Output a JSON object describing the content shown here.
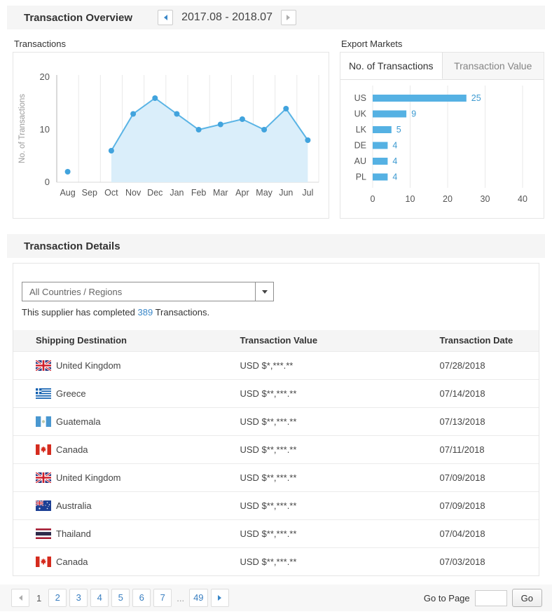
{
  "overview": {
    "title": "Transaction Overview",
    "date_range": "2017.08 - 2018.07",
    "transactions_label": "Transactions",
    "export_markets_label": "Export Markets",
    "tabs": [
      "No. of Transactions",
      "Transaction Value"
    ]
  },
  "chart_data": [
    {
      "type": "line",
      "title": "Transactions",
      "x": [
        "Aug",
        "Sep",
        "Oct",
        "Nov",
        "Dec",
        "Jan",
        "Feb",
        "Mar",
        "Apr",
        "May",
        "Jun",
        "Jul"
      ],
      "values": [
        2,
        null,
        6,
        13,
        16,
        13,
        10,
        11,
        12,
        10,
        14,
        8
      ],
      "ylabel": "No. of Transactions",
      "yticks": [
        0,
        10,
        20
      ],
      "ylim": [
        0,
        20
      ],
      "area": true,
      "grid": "vertical",
      "legend": "none",
      "colors": {
        "line": "#5ab4e5",
        "fill": "#daeefa",
        "point": "#41a3dd"
      }
    },
    {
      "type": "bar",
      "orientation": "horizontal",
      "title": "Export Markets - No. of Transactions",
      "categories": [
        "US",
        "UK",
        "LK",
        "DE",
        "AU",
        "PL"
      ],
      "values": [
        25,
        9,
        5,
        4,
        4,
        4
      ],
      "xticks": [
        0,
        10,
        20,
        30,
        40
      ],
      "xlim": [
        0,
        40
      ],
      "grid": "vertical",
      "legend": "none",
      "bar_color": "#55b1e3",
      "value_label_color": "#3d9ad1"
    }
  ],
  "details": {
    "title": "Transaction Details",
    "filter_value": "All Countries / Regions",
    "summary_prefix": "This supplier has completed ",
    "summary_count": "389",
    "summary_suffix": " Transactions.",
    "columns": [
      "Shipping Destination",
      "Transaction Value",
      "Transaction Date"
    ],
    "rows": [
      {
        "country": "United Kingdom",
        "flag": "gb",
        "value": "USD $*,***.**",
        "date": "07/28/2018"
      },
      {
        "country": "Greece",
        "flag": "gr",
        "value": "USD $**,***.**",
        "date": "07/14/2018"
      },
      {
        "country": "Guatemala",
        "flag": "gt",
        "value": "USD $**,***.**",
        "date": "07/13/2018"
      },
      {
        "country": "Canada",
        "flag": "ca",
        "value": "USD $**,***.**",
        "date": "07/11/2018"
      },
      {
        "country": "United Kingdom",
        "flag": "gb",
        "value": "USD $**,***.**",
        "date": "07/09/2018"
      },
      {
        "country": "Australia",
        "flag": "au",
        "value": "USD $**,***.**",
        "date": "07/09/2018"
      },
      {
        "country": "Thailand",
        "flag": "th",
        "value": "USD $**,***.**",
        "date": "07/04/2018"
      },
      {
        "country": "Canada",
        "flag": "ca",
        "value": "USD $**,***.**",
        "date": "07/03/2018"
      }
    ]
  },
  "pagination": {
    "current": "1",
    "pages": [
      "2",
      "3",
      "4",
      "5",
      "6",
      "7"
    ],
    "ellipsis": "...",
    "last": "49",
    "goto_label": "Go to Page",
    "goto_value": "",
    "go_label": "Go"
  },
  "icons": {
    "prev_period": "left-triangle",
    "next_period": "right-triangle",
    "prev_page": "left-triangle",
    "next_page": "right-triangle",
    "country_filter": "down-caret"
  },
  "colors": {
    "accent_blue": "#55b1e3",
    "link_blue": "#3a87c8",
    "section_header_bg": "#f5f5f5",
    "pagination_bg": "#f7f7f7"
  }
}
